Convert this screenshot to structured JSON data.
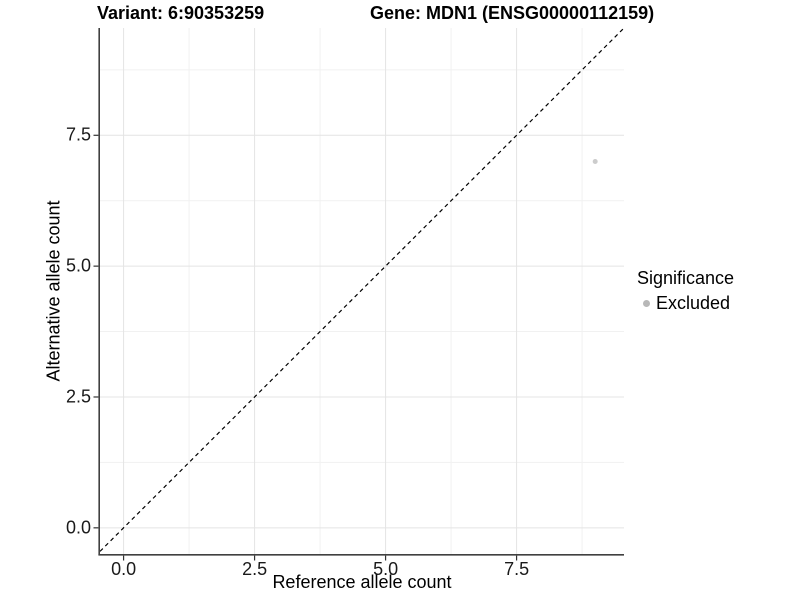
{
  "chart_data": {
    "type": "scatter",
    "titles": {
      "left": "Variant: 6:90353259",
      "right": "Gene: MDN1 (ENSG00000112159)"
    },
    "xlabel": "Reference allele count",
    "ylabel": "Alternative allele count",
    "xlim": [
      -0.45,
      9.55
    ],
    "ylim": [
      -0.5,
      9.55
    ],
    "x_ticks": {
      "values": [
        0,
        2.5,
        5,
        7.5
      ],
      "labels": [
        "0.0",
        "2.5",
        "5.0",
        "7.5"
      ]
    },
    "y_ticks": {
      "values": [
        0,
        2.5,
        5,
        7.5
      ],
      "labels": [
        "0.0",
        "2.5",
        "5.0",
        "7.5"
      ]
    },
    "minor_gridlines": {
      "x": [
        1.25,
        3.75,
        6.25,
        8.75
      ],
      "y": [
        1.25,
        3.75,
        6.25,
        8.75
      ]
    },
    "grid": true,
    "points": [
      {
        "x": 9,
        "y": 7,
        "series": "Excluded",
        "radius": 2.5
      }
    ],
    "reference_line": {
      "type": "identity",
      "slope": 1,
      "intercept": 0,
      "style": "dashed",
      "color": "#000000"
    },
    "legend": {
      "title": "Significance",
      "position": "right",
      "entries": [
        {
          "label": "Excluded",
          "color": "#b8b8b8"
        }
      ]
    },
    "colors": {
      "point": "#cccccc",
      "grid_major": "#e4e4e4",
      "grid_minor": "#f1f1f1",
      "axis_line": "#404040",
      "tick_mark": "#333333"
    }
  }
}
